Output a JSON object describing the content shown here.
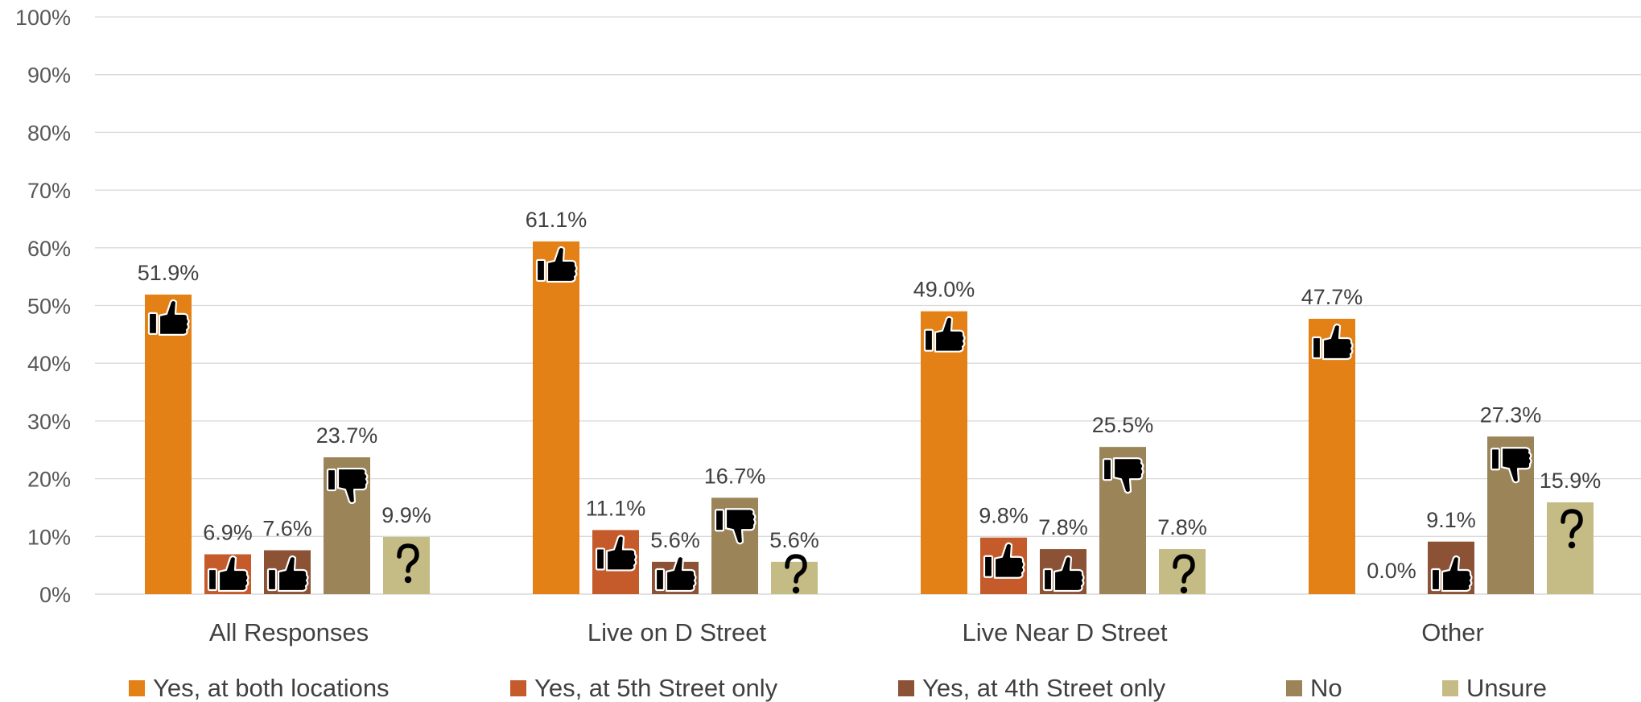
{
  "chart_data": {
    "type": "bar",
    "categories": [
      "All Responses",
      "Live on D Street",
      "Live Near D Street",
      "Other"
    ],
    "series": [
      {
        "name": "Yes, at both locations",
        "color": "#E38016",
        "icon": "thumbs-up-icon",
        "values": [
          51.9,
          61.1,
          49.0,
          47.7
        ]
      },
      {
        "name": "Yes, at 5th Street only",
        "color": "#C55A2B",
        "icon": "thumbs-up-icon",
        "values": [
          6.9,
          11.1,
          9.8,
          0.0
        ]
      },
      {
        "name": "Yes, at 4th Street only",
        "color": "#8C5236",
        "icon": "thumbs-up-icon",
        "values": [
          7.6,
          5.6,
          7.8,
          9.1
        ]
      },
      {
        "name": "No",
        "color": "#9C8459",
        "icon": "thumbs-down-icon",
        "values": [
          23.7,
          16.7,
          25.5,
          27.3
        ]
      },
      {
        "name": "Unsure",
        "color": "#C4BC84",
        "icon": "question-mark-icon",
        "values": [
          9.9,
          5.6,
          7.8,
          15.9
        ]
      }
    ],
    "value_format": "percent_1dp",
    "ylim": [
      0,
      100
    ],
    "y_ticks": [
      0,
      10,
      20,
      30,
      40,
      50,
      60,
      70,
      80,
      90,
      100
    ],
    "y_tick_labels": [
      "0%",
      "10%",
      "20%",
      "30%",
      "40%",
      "50%",
      "60%",
      "70%",
      "80%",
      "90%",
      "100%"
    ],
    "grid": true,
    "legend_position": "bottom",
    "title": "",
    "xlabel": "",
    "ylabel": ""
  }
}
